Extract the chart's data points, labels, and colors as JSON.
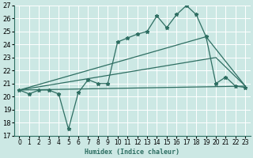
{
  "xlabel": "Humidex (Indice chaleur)",
  "bg_color": "#cce8e4",
  "grid_color": "#ffffff",
  "line_color": "#2e6e62",
  "xlim": [
    -0.5,
    23.5
  ],
  "ylim": [
    17,
    27
  ],
  "xticks": [
    0,
    1,
    2,
    3,
    4,
    5,
    6,
    7,
    8,
    9,
    10,
    11,
    12,
    13,
    14,
    15,
    16,
    17,
    18,
    19,
    20,
    21,
    22,
    23
  ],
  "yticks": [
    17,
    18,
    19,
    20,
    21,
    22,
    23,
    24,
    25,
    26,
    27
  ],
  "series1_x": [
    0,
    1,
    2,
    3,
    4,
    5,
    6,
    7,
    8,
    9,
    10,
    11,
    12,
    13,
    14,
    15,
    16,
    17,
    18,
    19,
    20,
    21,
    22,
    23
  ],
  "series1_y": [
    20.5,
    20.2,
    20.5,
    20.5,
    20.2,
    17.5,
    20.3,
    21.3,
    21.0,
    21.0,
    24.2,
    24.5,
    24.8,
    25.0,
    26.2,
    25.3,
    26.3,
    27.0,
    26.3,
    24.6,
    21.0,
    21.5,
    20.8,
    20.7
  ],
  "series2_x": [
    0,
    19,
    23
  ],
  "series2_y": [
    20.5,
    24.6,
    20.8
  ],
  "series3_x": [
    0,
    20,
    23
  ],
  "series3_y": [
    20.5,
    23.0,
    20.8
  ],
  "series4_x": [
    0,
    23
  ],
  "series4_y": [
    20.5,
    20.8
  ]
}
